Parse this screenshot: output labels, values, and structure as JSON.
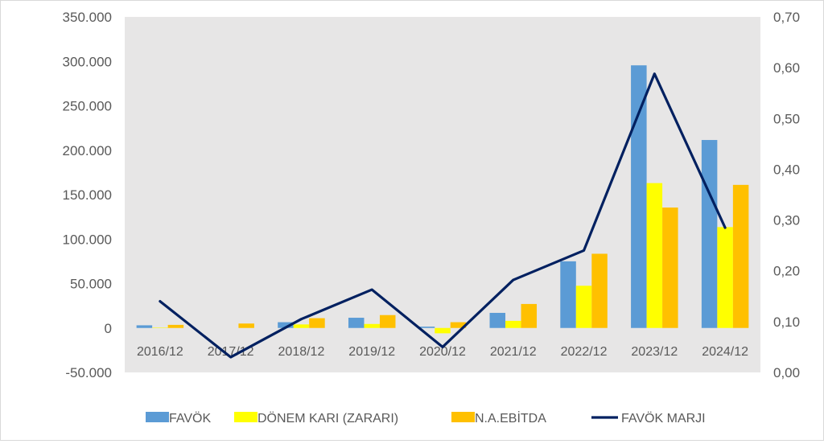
{
  "chart_data": {
    "type": "bar",
    "categories": [
      "2016/12",
      "2017/12",
      "2018/12",
      "2019/12",
      "2020/12",
      "2021/12",
      "2022/12",
      "2023/12",
      "2024/12"
    ],
    "series": [
      {
        "name": "FAVÖK",
        "type": "bar",
        "axis": "left",
        "color": "#5b9bd5",
        "values": [
          3000,
          0,
          6500,
          11500,
          1500,
          17000,
          75000,
          295500,
          211500
        ]
      },
      {
        "name": "DÖNEM KARI (ZARARI)",
        "type": "bar",
        "axis": "left",
        "color": "#ffff00",
        "values": [
          500,
          0,
          4000,
          4500,
          -6000,
          8000,
          47500,
          163000,
          113500
        ]
      },
      {
        "name": "N.A.EBİTDA",
        "type": "bar",
        "axis": "left",
        "color": "#ffc000",
        "values": [
          3500,
          5000,
          11000,
          14500,
          6500,
          27000,
          83500,
          135500,
          161000
        ]
      },
      {
        "name": "FAVÖK MARJI",
        "type": "line",
        "axis": "right",
        "color": "#002060",
        "values": [
          0.14,
          0.03,
          0.105,
          0.163,
          0.05,
          0.182,
          0.24,
          0.588,
          0.285
        ]
      }
    ],
    "left_axis": {
      "ylim": [
        -50000,
        350000
      ],
      "ticks": [
        -50000,
        0,
        50000,
        100000,
        150000,
        200000,
        250000,
        300000,
        350000
      ],
      "tick_labels": [
        "-50.000",
        "0",
        "50.000",
        "100.000",
        "150.000",
        "200.000",
        "250.000",
        "300.000",
        "350.000"
      ]
    },
    "right_axis": {
      "ylim": [
        0,
        0.7
      ],
      "ticks": [
        0,
        0.1,
        0.2,
        0.3,
        0.4,
        0.5,
        0.6,
        0.7
      ],
      "tick_labels": [
        "0,00",
        "0,10",
        "0,20",
        "0,30",
        "0,40",
        "0,50",
        "0,60",
        "0,70"
      ]
    },
    "title": "",
    "xlabel": "",
    "ylabel": "",
    "grid": false,
    "plot_background": "#e7e6e6",
    "legend_position": "bottom"
  }
}
